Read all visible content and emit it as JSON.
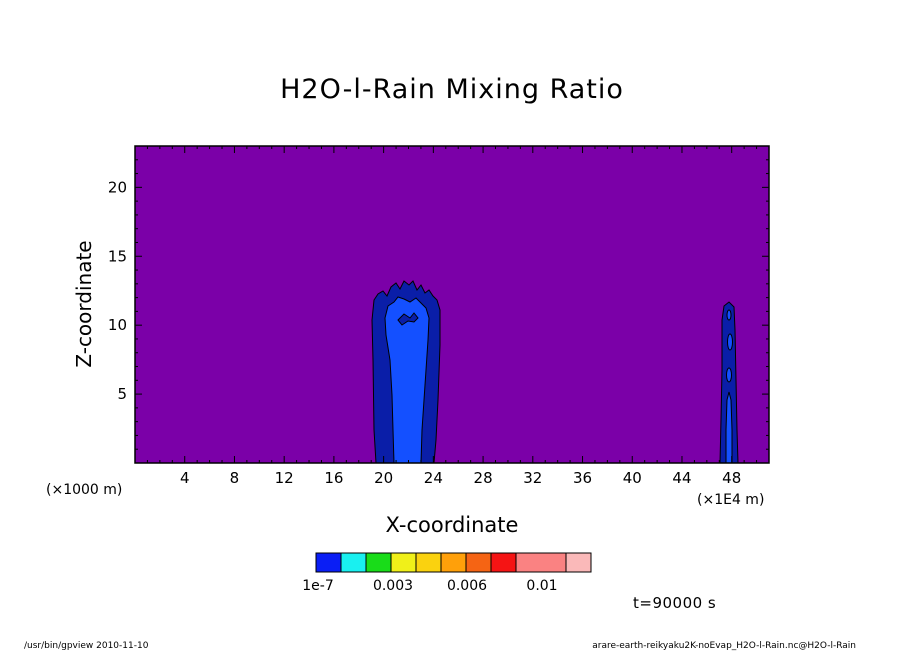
{
  "chart_data": {
    "type": "heatmap",
    "title": "H2O-l-Rain Mixing Ratio",
    "xlabel": "X-coordinate",
    "ylabel": "Z-coordinate",
    "x_unit": "(×1000 m)",
    "x_unit_secondary": "(×1E4 m)",
    "xlim": [
      0,
      51
    ],
    "ylim": [
      0,
      23
    ],
    "xticks": [
      4,
      8,
      12,
      16,
      20,
      24,
      28,
      32,
      36,
      40,
      44,
      48
    ],
    "yticks": [
      5,
      10,
      15,
      20
    ],
    "background_color": "#7b00a8",
    "colorbar": {
      "colors": [
        "#0a1ef5",
        "#19f0f0",
        "#19dc19",
        "#f0f019",
        "#fad20f",
        "#ffa00a",
        "#f56414",
        "#f51414",
        "#fa8282",
        "#fab9b9"
      ],
      "tick_labels": [
        "1e-7",
        "0.003",
        "0.006",
        "0.01"
      ]
    },
    "regions": [
      {
        "name": "main-cell-outer",
        "level": "1e-7",
        "x_range": [
          19.5,
          24.4
        ],
        "z_top": 13.0,
        "color": "#0a1ea8"
      },
      {
        "name": "main-cell-inner",
        "level": "0.001",
        "x_range": [
          20.3,
          23.5
        ],
        "z_top": 12.0,
        "color": "#1450ff"
      },
      {
        "name": "right-cell-outer",
        "level": "1e-7",
        "x_range": [
          47.2,
          48.2
        ],
        "z_top": 11.5,
        "color": "#0a1ea8"
      },
      {
        "name": "right-cell-inner",
        "level": "0.001",
        "x_range": [
          47.5,
          48.0
        ],
        "z_top": 10.5,
        "color": "#1450ff"
      }
    ],
    "time_label": "t=90000 s"
  },
  "footer": {
    "left": "/usr/bin/gpview  2010-11-10",
    "right": "arare-earth-reikyaku2K-noEvap_H2O-l-Rain.nc@H2O-l-Rain"
  }
}
